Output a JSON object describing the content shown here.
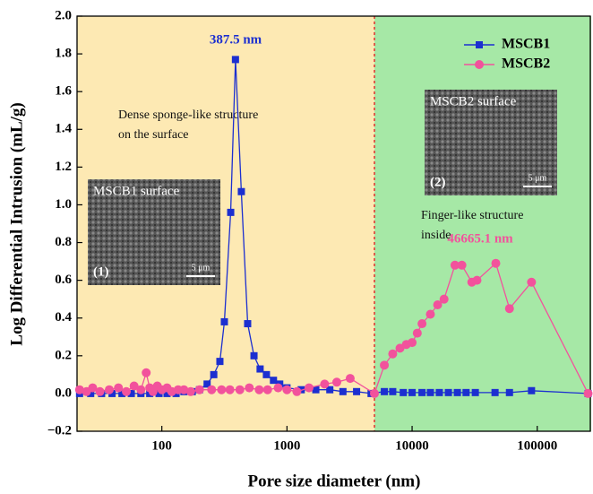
{
  "chart_data": {
    "type": "line",
    "x_label": "Pore size diameter (nm)",
    "y_label": "Log Differential Intrusion (mL/g)",
    "xscale": "log",
    "xlim": [
      21,
      270000
    ],
    "ylim": [
      -0.2,
      2.0
    ],
    "xticks": [
      100,
      1000,
      10000,
      100000
    ],
    "yticks": [
      {
        "value": 2.0,
        "label": "2.0"
      },
      {
        "value": 1.8,
        "label": "1.8"
      },
      {
        "value": 1.6,
        "label": "1.6"
      },
      {
        "value": 1.4,
        "label": "1.4"
      },
      {
        "value": 1.2,
        "label": "1.2"
      },
      {
        "value": 1.0,
        "label": "1.0"
      },
      {
        "value": 0.8,
        "label": "0.8"
      },
      {
        "value": 0.6,
        "label": "0.6"
      },
      {
        "value": 0.4,
        "label": "0.4"
      },
      {
        "value": 0.2,
        "label": "0.2"
      },
      {
        "value": 0.0,
        "label": "0.0"
      },
      {
        "value": -0.2,
        "label": "−0.2"
      }
    ],
    "divider_x": 5000,
    "region_colors": [
      "#fde9b3",
      "#a6e8a6"
    ],
    "divider_color": "#e03030",
    "legend": "upper right",
    "series": [
      {
        "name": "MSCB1",
        "color": "#1c2fd0",
        "marker": "square",
        "x": [
          22,
          27,
          33,
          40,
          48,
          57,
          68,
          80,
          95,
          110,
          130,
          150,
          175,
          200,
          230,
          260,
          291,
          316,
          355,
          387.5,
          432,
          485,
          545,
          610,
          685,
          780,
          875,
          1000,
          1300,
          1700,
          2200,
          2800,
          3600,
          4700,
          6000,
          7000,
          8500,
          10000,
          12000,
          14000,
          16500,
          19500,
          23000,
          27000,
          32000,
          46000,
          60000,
          90000,
          255000
        ],
        "values": [
          0.0,
          0.0,
          0.0,
          0.0,
          0.0,
          0.0,
          0.0,
          0.0,
          0.0,
          0.0,
          0.0,
          0.01,
          0.01,
          0.02,
          0.05,
          0.1,
          0.17,
          0.38,
          0.96,
          1.77,
          1.07,
          0.37,
          0.2,
          0.13,
          0.1,
          0.07,
          0.05,
          0.03,
          0.02,
          0.02,
          0.02,
          0.01,
          0.01,
          0.0,
          0.01,
          0.01,
          0.005,
          0.005,
          0.005,
          0.005,
          0.005,
          0.005,
          0.005,
          0.005,
          0.005,
          0.005,
          0.005,
          0.015,
          0.0
        ]
      },
      {
        "name": "MSCB2",
        "color": "#f2529c",
        "marker": "circle",
        "x": [
          22,
          25,
          28,
          32,
          38,
          45,
          52,
          60,
          68,
          75,
          80,
          85,
          92,
          100,
          110,
          120,
          135,
          150,
          170,
          200,
          250,
          300,
          350,
          420,
          500,
          600,
          700,
          850,
          1000,
          1200,
          1500,
          2000,
          2500,
          3200,
          5000,
          6000,
          7000,
          8000,
          9000,
          10000,
          11000,
          12000,
          14000,
          16000,
          18000,
          22000,
          25000,
          30000,
          33000,
          46665.1,
          60000,
          90000,
          255000
        ],
        "values": [
          0.02,
          0.01,
          0.03,
          0.01,
          0.02,
          0.03,
          0.01,
          0.04,
          0.02,
          0.11,
          0.03,
          0.01,
          0.04,
          0.02,
          0.03,
          0.01,
          0.02,
          0.02,
          0.01,
          0.02,
          0.02,
          0.02,
          0.02,
          0.02,
          0.03,
          0.02,
          0.02,
          0.03,
          0.02,
          0.01,
          0.03,
          0.05,
          0.06,
          0.08,
          0.0,
          0.15,
          0.21,
          0.24,
          0.26,
          0.27,
          0.32,
          0.37,
          0.42,
          0.47,
          0.5,
          0.68,
          0.68,
          0.59,
          0.6,
          0.69,
          0.45,
          0.59,
          0.0
        ]
      }
    ],
    "annotations": [
      {
        "text": "387.5 nm",
        "color": "#1c2fd0"
      },
      {
        "text": "46665.1 nm",
        "color": "#f2529c"
      },
      {
        "text": "Dense sponge-like structure",
        "color": "#111111"
      },
      {
        "text": "on the surface",
        "color": "#111111"
      },
      {
        "text": "Finger-like structure",
        "color": "#111111"
      },
      {
        "text": "inside",
        "color": "#111111"
      }
    ],
    "insets": [
      {
        "title": "MSCB1 surface",
        "label": "(1)",
        "scale": "5 μm"
      },
      {
        "title": "MSCB2 surface",
        "label": "(2)",
        "scale": "5 μm"
      }
    ]
  }
}
